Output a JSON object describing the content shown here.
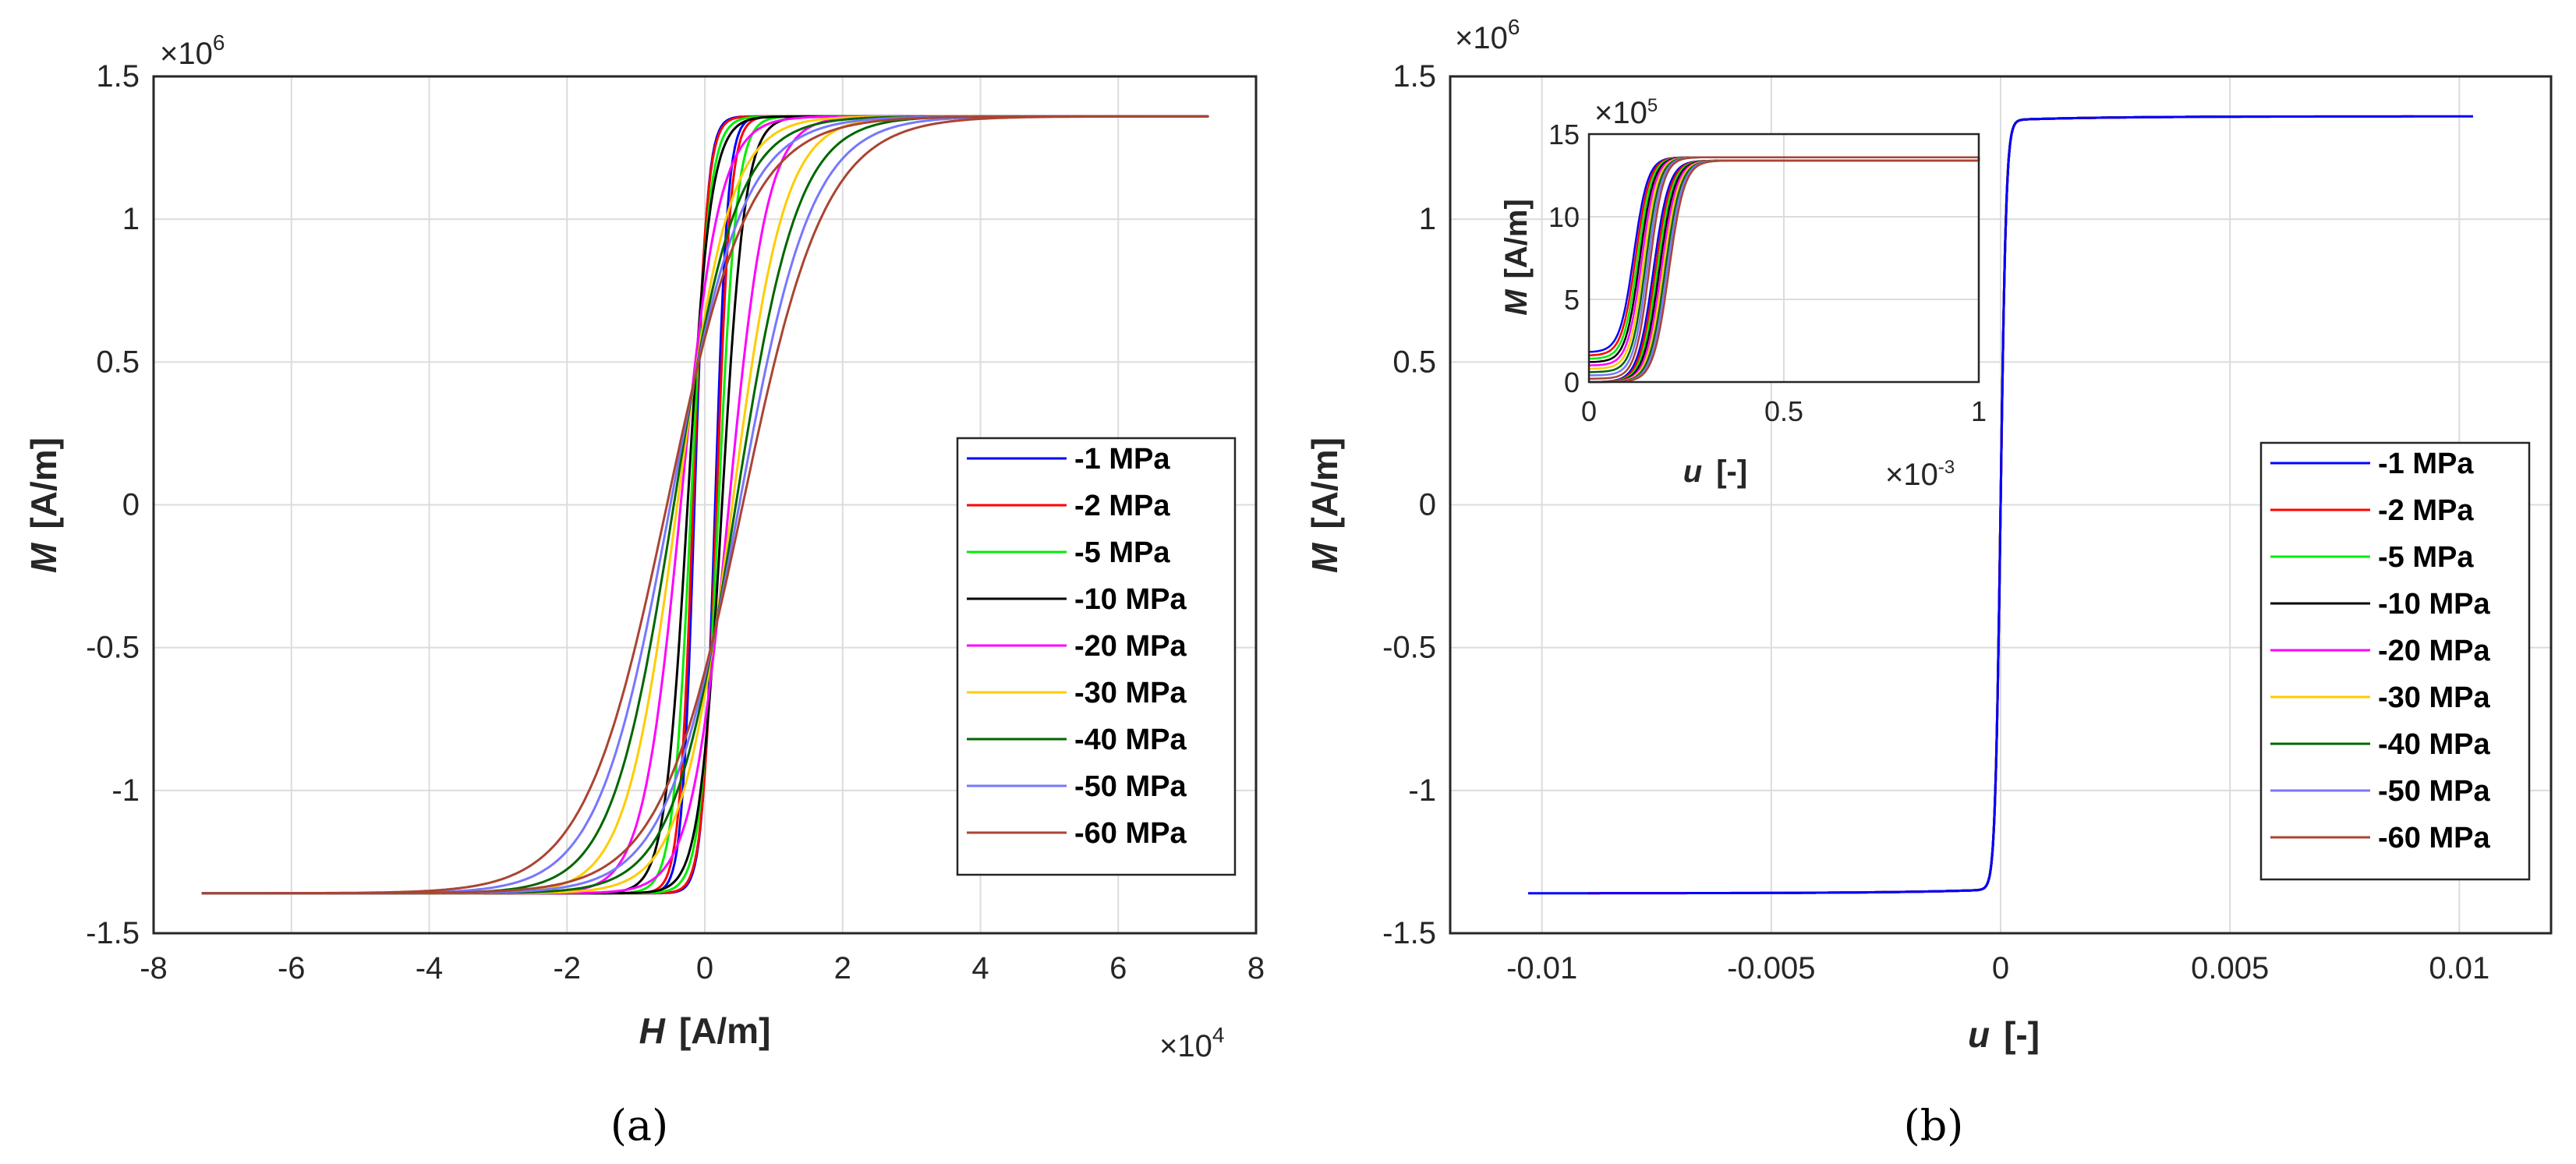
{
  "colors": {
    "grid": "#dcdcdc",
    "axis": "#262626",
    "series": [
      "#0000ff",
      "#ff0000",
      "#00ee00",
      "#000000",
      "#ff00ff",
      "#ffcc00",
      "#006600",
      "#7777ff",
      "#aa4433"
    ]
  },
  "legend_labels": [
    "-1 MPa",
    "-2 MPa",
    "-5 MPa",
    "-10 MPa",
    "-20 MPa",
    "-30 MPa",
    "-40 MPa",
    "-50 MPa",
    "-60 MPa"
  ],
  "panels": {
    "a": {
      "caption": "(a)",
      "x_symbol": "H",
      "x_unit": "[A/m]",
      "y_symbol": "M",
      "y_unit": "[A/m]",
      "x_multiplier_base": "×10",
      "x_multiplier_exp": "4",
      "y_multiplier_base": "×10",
      "y_multiplier_exp": "6",
      "x_ticks": [
        "-8",
        "-6",
        "-4",
        "-2",
        "0",
        "2",
        "4",
        "6",
        "8"
      ],
      "y_ticks": [
        "-1.5",
        "-1",
        "-0.5",
        "0",
        "0.5",
        "1",
        "1.5"
      ]
    },
    "b": {
      "caption": "(b)",
      "x_symbol": "u",
      "x_unit": "[-]",
      "y_symbol": "M",
      "y_unit": "[A/m]",
      "y_multiplier_base": "×10",
      "y_multiplier_exp": "6",
      "x_ticks": [
        "-0.01",
        "-0.005",
        "0",
        "0.005",
        "0.01"
      ],
      "y_ticks": [
        "-1.5",
        "-1",
        "-0.5",
        "0",
        "0.5",
        "1",
        "1.5"
      ],
      "inset": {
        "x_symbol": "u",
        "x_unit": "[-]",
        "y_symbol": "M",
        "y_unit": "[A/m]",
        "x_multiplier_base": "×10",
        "x_multiplier_exp": "-3",
        "y_multiplier_base": "×10",
        "y_multiplier_exp": "5",
        "x_ticks": [
          "0",
          "0.5",
          "1"
        ],
        "y_ticks": [
          "0",
          "5",
          "10",
          "15"
        ]
      }
    }
  },
  "chart_data": [
    {
      "type": "line",
      "panel": "a",
      "title": "",
      "xlabel": "H [A/m]",
      "ylabel": "M [A/m]",
      "x_scale": 10000,
      "y_scale": 1000000,
      "xlim": [
        -8,
        8
      ],
      "ylim": [
        -1.5,
        1.5
      ],
      "grid": true,
      "legend_position": "lower-right",
      "model": "hysteresis loop M(H) = Ms*tanh((H ± Hc)/w) with tail x range ±7.3",
      "series": [
        {
          "name": "-1 MPa",
          "Ms": 1.36,
          "Hc": 0.15,
          "w": 0.18,
          "xmax": 7.3
        },
        {
          "name": "-2 MPa",
          "Ms": 1.36,
          "Hc": 0.17,
          "w": 0.2,
          "xmax": 7.3
        },
        {
          "name": "-5 MPa",
          "Ms": 1.36,
          "Hc": 0.2,
          "w": 0.26,
          "xmax": 7.3
        },
        {
          "name": "-10 MPa",
          "Ms": 1.36,
          "Hc": 0.25,
          "w": 0.33,
          "xmax": 7.3
        },
        {
          "name": "-20 MPa",
          "Ms": 1.36,
          "Hc": 0.35,
          "w": 0.55,
          "xmax": 7.3
        },
        {
          "name": "-30 MPa",
          "Ms": 1.36,
          "Hc": 0.4,
          "w": 0.75,
          "xmax": 7.3
        },
        {
          "name": "-40 MPa",
          "Ms": 1.36,
          "Hc": 0.45,
          "w": 0.9,
          "xmax": 7.3
        },
        {
          "name": "-50 MPa",
          "Ms": 1.36,
          "Hc": 0.5,
          "w": 1.05,
          "xmax": 7.3
        },
        {
          "name": "-60 MPa",
          "Ms": 1.36,
          "Hc": 0.55,
          "w": 1.2,
          "xmax": 7.3
        }
      ]
    },
    {
      "type": "line",
      "panel": "b",
      "title": "",
      "xlabel": "u [-]",
      "ylabel": "M [A/m]",
      "y_scale": 1000000,
      "xlim": [
        -0.012,
        0.012
      ],
      "ylim": [
        -1.5,
        1.5
      ],
      "grid": true,
      "legend_position": "lower-right",
      "series": [
        {
          "name": "-1 MPa",
          "umax": 0.0103
        },
        {
          "name": "-2 MPa",
          "umax": 0.009
        },
        {
          "name": "-5 MPa",
          "umax": 0.0068
        },
        {
          "name": "-10 MPa",
          "umax": 0.0047
        },
        {
          "name": "-20 MPa",
          "umax": 0.0032
        },
        {
          "name": "-30 MPa",
          "umax": 0.0024
        },
        {
          "name": "-40 MPa",
          "umax": 0.0018
        },
        {
          "name": "-50 MPa",
          "umax": 0.0014
        },
        {
          "name": "-60 MPa",
          "umax": 0.0012
        }
      ]
    },
    {
      "type": "line",
      "panel": "b-inset",
      "title": "",
      "xlabel": "u [-]",
      "ylabel": "M [A/m]",
      "x_scale": 0.001,
      "y_scale": 100000,
      "xlim": [
        0,
        1
      ],
      "ylim": [
        0,
        15
      ],
      "grid": true,
      "series": [
        {
          "name": "-1 MPa",
          "M0": 1.8,
          "u_half": 0.145
        },
        {
          "name": "-2 MPa",
          "M0": 1.6,
          "u_half": 0.15
        },
        {
          "name": "-5 MPa",
          "M0": 1.4,
          "u_half": 0.155
        },
        {
          "name": "-10 MPa",
          "M0": 1.2,
          "u_half": 0.16
        },
        {
          "name": "-20 MPa",
          "M0": 1.0,
          "u_half": 0.165
        },
        {
          "name": "-30 MPa",
          "M0": 0.8,
          "u_half": 0.17
        },
        {
          "name": "-40 MPa",
          "M0": 0.6,
          "u_half": 0.175
        },
        {
          "name": "-50 MPa",
          "M0": 0.4,
          "u_half": 0.18
        },
        {
          "name": "-60 MPa",
          "M0": 0.2,
          "u_half": 0.185
        }
      ]
    }
  ]
}
